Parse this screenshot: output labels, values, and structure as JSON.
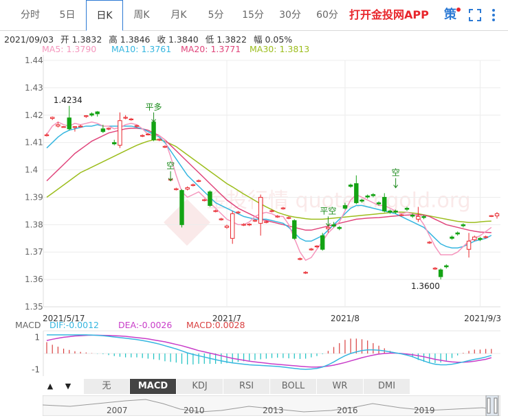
{
  "tabs": [
    "分时",
    "5日",
    "日K",
    "周K",
    "月K",
    "5分",
    "15分",
    "30分",
    "60分"
  ],
  "active_tab": "日K",
  "app_link": "打开金投网APP",
  "ce_label": "策",
  "icons": {
    "fullscreen": "fullscreen-icon",
    "more": "more-vertical-icon"
  },
  "info": {
    "date": "2021/09/03",
    "open_label": "开",
    "open": "1.3832",
    "high_label": "高",
    "high": "1.3846",
    "close_label": "收",
    "close": "1.3840",
    "low_label": "低",
    "low": "1.3822",
    "change_label": "幅",
    "change": "0.05%"
  },
  "ma": [
    {
      "label": "MA5:",
      "value": "1.3790",
      "color": "#f596bd"
    },
    {
      "label": "MA10:",
      "value": "1.3761",
      "color": "#35b6e0"
    },
    {
      "label": "MA20:",
      "value": "1.3771",
      "color": "#e0457b"
    },
    {
      "label": "MA30:",
      "value": "1.3813",
      "color": "#9cbd1c"
    }
  ],
  "macd_info": {
    "title": "MACD",
    "dif_label": "DIF:",
    "dif": "-0.0012",
    "dea_label": "DEA:",
    "dea": "-0.0026",
    "macd_label": "MACD:",
    "macd": "0.0028"
  },
  "indicator_tabs": [
    "无",
    "MACD",
    "KDJ",
    "RSI",
    "BOLL",
    "WR",
    "DMI"
  ],
  "active_indicator": "MACD",
  "nav_years": [
    "2007",
    "2010",
    "2013",
    "2016",
    "2019"
  ],
  "watermark": "金投行情 quote.cngold.org",
  "chart_data": {
    "type": "candlestick",
    "ylim": [
      1.35,
      1.44
    ],
    "yticks": [
      "1.44",
      "1.43",
      "1.42",
      "1.41",
      "1.4",
      "1.39",
      "1.38",
      "1.37",
      "1.36",
      "1.35"
    ],
    "xticks": [
      {
        "label": "2021/5/17",
        "index": 0
      },
      {
        "label": "2021/7",
        "index": 32
      },
      {
        "label": "2021/8",
        "index": 53
      },
      {
        "label": "2021/9/3",
        "index": 77
      }
    ],
    "annotations": [
      {
        "text": "1.4234",
        "index": 4,
        "value": 1.4234,
        "kind": "high"
      },
      {
        "text": "1.3600",
        "index": 69,
        "value": 1.36,
        "kind": "low"
      },
      {
        "text": "平多",
        "index": 19,
        "value": 1.4175,
        "kind": "signal"
      },
      {
        "text": "空",
        "index": 22,
        "value": 1.396,
        "kind": "signal"
      },
      {
        "text": "平空",
        "index": 50,
        "value": 1.3795,
        "kind": "signal"
      },
      {
        "text": "空",
        "index": 62,
        "value": 1.3935,
        "kind": "signal"
      }
    ],
    "candles": [
      [
        1.4125,
        1.4135,
        1.4128,
        1.4122
      ],
      [
        1.4188,
        1.4195,
        1.4192,
        1.4182
      ],
      [
        1.416,
        1.4175,
        1.4165,
        1.4155
      ],
      [
        1.4158,
        1.416,
        1.4158,
        1.4156
      ],
      [
        1.419,
        1.4234,
        1.415,
        1.4145
      ],
      [
        1.4155,
        1.416,
        1.4158,
        1.414
      ],
      [
        1.416,
        1.4165,
        1.416,
        1.4155
      ],
      [
        1.4195,
        1.42,
        1.4198,
        1.419
      ],
      [
        1.4205,
        1.421,
        1.42,
        1.4195
      ],
      [
        1.4212,
        1.4215,
        1.4205,
        1.4195
      ],
      [
        1.415,
        1.4165,
        1.414,
        1.4135
      ],
      [
        1.415,
        1.4155,
        1.4152,
        1.4145
      ],
      [
        1.41,
        1.411,
        1.4095,
        1.409
      ],
      [
        1.409,
        1.421,
        1.418,
        1.408
      ],
      [
        1.419,
        1.42,
        1.4192,
        1.4185
      ],
      [
        1.4185,
        1.419,
        1.4186,
        1.418
      ],
      [
        1.416,
        1.4165,
        1.4162,
        1.4155
      ],
      [
        1.4125,
        1.413,
        1.4126,
        1.412
      ],
      [
        1.413,
        1.4135,
        1.4131,
        1.4126
      ],
      [
        1.4175,
        1.4185,
        1.411,
        1.4105
      ],
      [
        1.411,
        1.4115,
        1.4112,
        1.4105
      ],
      [
        1.4085,
        1.409,
        1.4086,
        1.408
      ],
      [
        1.3965,
        1.397,
        1.3966,
        1.396
      ],
      [
        1.393,
        1.3935,
        1.3931,
        1.3925
      ],
      [
        1.3925,
        1.393,
        1.38,
        1.379
      ],
      [
        1.393,
        1.394,
        1.3935,
        1.3925
      ],
      [
        1.3945,
        1.395,
        1.3946,
        1.394
      ],
      [
        1.396,
        1.3965,
        1.3961,
        1.3955
      ],
      [
        1.389,
        1.3895,
        1.3891,
        1.3885
      ],
      [
        1.392,
        1.3925,
        1.387,
        1.3865
      ],
      [
        1.385,
        1.3855,
        1.3851,
        1.3845
      ],
      [
        1.382,
        1.3825,
        1.3821,
        1.3815
      ],
      [
        1.379,
        1.38,
        1.3795,
        1.3785
      ],
      [
        1.375,
        1.385,
        1.384,
        1.373
      ],
      [
        1.3845,
        1.385,
        1.3846,
        1.384
      ],
      [
        1.38,
        1.3805,
        1.3801,
        1.3795
      ],
      [
        1.38,
        1.3805,
        1.3802,
        1.3795
      ],
      [
        1.3815,
        1.382,
        1.3816,
        1.381
      ],
      [
        1.3805,
        1.391,
        1.39,
        1.376
      ],
      [
        1.381,
        1.3815,
        1.3811,
        1.3805
      ],
      [
        1.385,
        1.3855,
        1.3851,
        1.3845
      ],
      [
        1.383,
        1.3835,
        1.3831,
        1.3825
      ],
      [
        1.386,
        1.3865,
        1.3861,
        1.3855
      ],
      [
        1.3825,
        1.383,
        1.3826,
        1.382
      ],
      [
        1.3815,
        1.382,
        1.375,
        1.3745
      ],
      [
        1.3675,
        1.368,
        1.3676,
        1.367
      ],
      [
        1.3625,
        1.363,
        1.3626,
        1.362
      ],
      [
        1.371,
        1.3715,
        1.3711,
        1.3705
      ],
      [
        1.372,
        1.3725,
        1.3722,
        1.3715
      ],
      [
        1.376,
        1.377,
        1.371,
        1.3705
      ],
      [
        1.3785,
        1.38,
        1.379,
        1.377
      ],
      [
        1.38,
        1.381,
        1.3795,
        1.379
      ],
      [
        1.379,
        1.3795,
        1.3786,
        1.378
      ],
      [
        1.387,
        1.388,
        1.386,
        1.3855
      ],
      [
        1.3945,
        1.395,
        1.394,
        1.3935
      ],
      [
        1.395,
        1.398,
        1.388,
        1.3875
      ],
      [
        1.389,
        1.3895,
        1.3886,
        1.388
      ],
      [
        1.3905,
        1.391,
        1.3901,
        1.3895
      ],
      [
        1.391,
        1.3915,
        1.3906,
        1.39
      ],
      [
        1.388,
        1.3885,
        1.3876,
        1.387
      ],
      [
        1.39,
        1.3915,
        1.385,
        1.3845
      ],
      [
        1.385,
        1.3855,
        1.3846,
        1.384
      ],
      [
        1.385,
        1.3855,
        1.3846,
        1.384
      ],
      [
        1.3835,
        1.384,
        1.3836,
        1.383
      ],
      [
        1.386,
        1.3865,
        1.3856,
        1.385
      ],
      [
        1.3835,
        1.384,
        1.3831,
        1.3825
      ],
      [
        1.382,
        1.3865,
        1.383,
        1.381
      ],
      [
        1.383,
        1.3835,
        1.3826,
        1.382
      ],
      [
        1.3735,
        1.374,
        1.3736,
        1.373
      ],
      [
        1.364,
        1.3645,
        1.3641,
        1.3635
      ],
      [
        1.3635,
        1.364,
        1.361,
        1.36
      ],
      [
        1.365,
        1.3655,
        1.3646,
        1.364
      ],
      [
        1.3755,
        1.376,
        1.375,
        1.3745
      ],
      [
        1.377,
        1.3775,
        1.3766,
        1.376
      ],
      [
        1.38,
        1.3805,
        1.3796,
        1.379
      ],
      [
        1.371,
        1.377,
        1.374,
        1.368
      ],
      [
        1.3745,
        1.376,
        1.3755,
        1.374
      ],
      [
        1.375,
        1.3755,
        1.3746,
        1.374
      ],
      [
        1.3755,
        1.376,
        1.3756,
        1.375
      ],
      [
        1.3832,
        1.3835,
        1.3833,
        1.3828
      ],
      [
        1.3832,
        1.3846,
        1.384,
        1.3822
      ]
    ],
    "ma5": [
      1.413,
      1.416,
      1.4175,
      1.4165,
      1.416,
      1.417,
      1.4165,
      1.417,
      1.4175,
      1.417,
      1.416,
      1.416,
      1.415,
      1.4155,
      1.4165,
      1.417,
      1.4165,
      1.415,
      1.413,
      1.4125,
      1.4125,
      1.411,
      1.405,
      1.398,
      1.392,
      1.39,
      1.391,
      1.392,
      1.39,
      1.388,
      1.386,
      1.384,
      1.382,
      1.381,
      1.38,
      1.38,
      1.381,
      1.383,
      1.384,
      1.3845,
      1.384,
      1.383,
      1.383,
      1.38,
      1.375,
      1.37,
      1.367,
      1.368,
      1.371,
      1.374,
      1.377,
      1.379,
      1.381,
      1.385,
      1.389,
      1.391,
      1.39,
      1.389,
      1.388,
      1.387,
      1.387,
      1.386,
      1.385,
      1.384,
      1.3845,
      1.384,
      1.383,
      1.38,
      1.376,
      1.372,
      1.369,
      1.369,
      1.369,
      1.37,
      1.372,
      1.374,
      1.375,
      1.376,
      1.3775,
      1.379
    ],
    "ma10": [
      1.408,
      1.41,
      1.412,
      1.4135,
      1.4145,
      1.415,
      1.4155,
      1.416,
      1.416,
      1.4165,
      1.416,
      1.416,
      1.416,
      1.416,
      1.416,
      1.416,
      1.4155,
      1.415,
      1.414,
      1.413,
      1.412,
      1.41,
      1.407,
      1.404,
      1.401,
      1.398,
      1.396,
      1.394,
      1.392,
      1.39,
      1.388,
      1.387,
      1.386,
      1.385,
      1.384,
      1.383,
      1.3825,
      1.382,
      1.382,
      1.382,
      1.3815,
      1.381,
      1.3805,
      1.379,
      1.377,
      1.375,
      1.374,
      1.374,
      1.375,
      1.376,
      1.378,
      1.38,
      1.382,
      1.384,
      1.386,
      1.387,
      1.387,
      1.3865,
      1.386,
      1.3855,
      1.385,
      1.3845,
      1.384,
      1.383,
      1.382,
      1.381,
      1.38,
      1.379,
      1.377,
      1.375,
      1.373,
      1.372,
      1.3715,
      1.3715,
      1.372,
      1.373,
      1.374,
      1.3745,
      1.375,
      1.3761
    ],
    "ma20": [
      1.396,
      1.398,
      1.4,
      1.402,
      1.404,
      1.406,
      1.4075,
      1.409,
      1.4105,
      1.4115,
      1.4125,
      1.4135,
      1.414,
      1.4145,
      1.415,
      1.4152,
      1.4152,
      1.415,
      1.4145,
      1.4135,
      1.4125,
      1.411,
      1.409,
      1.407,
      1.405,
      1.403,
      1.401,
      1.399,
      1.397,
      1.395,
      1.393,
      1.391,
      1.389,
      1.3875,
      1.386,
      1.385,
      1.384,
      1.383,
      1.382,
      1.3815,
      1.381,
      1.3805,
      1.38,
      1.3795,
      1.379,
      1.3785,
      1.378,
      1.378,
      1.3785,
      1.379,
      1.3795,
      1.38,
      1.3805,
      1.381,
      1.3815,
      1.382,
      1.3822,
      1.3824,
      1.3825,
      1.3826,
      1.3828,
      1.383,
      1.3832,
      1.3834,
      1.3835,
      1.3836,
      1.3836,
      1.3835,
      1.383,
      1.382,
      1.381,
      1.38,
      1.3795,
      1.379,
      1.3785,
      1.378,
      1.3776,
      1.3773,
      1.3772,
      1.3771
    ],
    "ma30": [
      1.39,
      1.3915,
      1.393,
      1.3945,
      1.396,
      1.3975,
      1.399,
      1.4,
      1.401,
      1.402,
      1.403,
      1.404,
      1.405,
      1.406,
      1.407,
      1.408,
      1.409,
      1.4098,
      1.4105,
      1.411,
      1.411,
      1.4105,
      1.4095,
      1.4085,
      1.407,
      1.4055,
      1.404,
      1.4025,
      1.401,
      1.3995,
      1.398,
      1.3965,
      1.395,
      1.3938,
      1.3925,
      1.3912,
      1.39,
      1.3888,
      1.3876,
      1.3865,
      1.3855,
      1.3845,
      1.3838,
      1.3832,
      1.3828,
      1.3825,
      1.3822,
      1.382,
      1.382,
      1.382,
      1.3822,
      1.3824,
      1.3826,
      1.3828,
      1.383,
      1.3832,
      1.3834,
      1.3836,
      1.3838,
      1.384,
      1.3842,
      1.3844,
      1.3846,
      1.3846,
      1.3845,
      1.3843,
      1.384,
      1.3836,
      1.3832,
      1.3828,
      1.3824,
      1.382,
      1.3816,
      1.3812,
      1.381,
      1.3808,
      1.3808,
      1.381,
      1.3812,
      1.3813
    ],
    "macd_ylim": [
      -1.4,
      1.4
    ],
    "macd_yticks": [
      "1",
      "-1"
    ],
    "dif": [
      1.15,
      1.15,
      1.15,
      1.15,
      1.15,
      1.15,
      1.15,
      1.15,
      1.14,
      1.12,
      1.1,
      1.06,
      1.02,
      0.98,
      0.94,
      0.9,
      0.86,
      0.8,
      0.74,
      0.66,
      0.58,
      0.48,
      0.38,
      0.28,
      0.16,
      0.04,
      -0.06,
      -0.14,
      -0.22,
      -0.3,
      -0.38,
      -0.46,
      -0.52,
      -0.58,
      -0.62,
      -0.66,
      -0.7,
      -0.72,
      -0.74,
      -0.76,
      -0.78,
      -0.8,
      -0.84,
      -0.88,
      -0.92,
      -0.96,
      -0.98,
      -0.96,
      -0.92,
      -0.84,
      -0.7,
      -0.52,
      -0.32,
      -0.14,
      0.0,
      0.1,
      0.18,
      0.22,
      0.22,
      0.2,
      0.16,
      0.1,
      0.04,
      -0.02,
      -0.1,
      -0.2,
      -0.34,
      -0.46,
      -0.58,
      -0.66,
      -0.7,
      -0.7,
      -0.66,
      -0.6,
      -0.52,
      -0.44,
      -0.36,
      -0.3,
      -0.22,
      -0.12
    ],
    "dea": [
      0.8,
      0.88,
      0.94,
      1.0,
      1.04,
      1.08,
      1.1,
      1.12,
      1.13,
      1.13,
      1.12,
      1.11,
      1.1,
      1.08,
      1.06,
      1.02,
      0.98,
      0.94,
      0.9,
      0.84,
      0.78,
      0.72,
      0.64,
      0.56,
      0.48,
      0.38,
      0.28,
      0.18,
      0.1,
      0.02,
      -0.06,
      -0.14,
      -0.22,
      -0.3,
      -0.36,
      -0.42,
      -0.48,
      -0.52,
      -0.56,
      -0.6,
      -0.64,
      -0.67,
      -0.7,
      -0.73,
      -0.76,
      -0.79,
      -0.82,
      -0.84,
      -0.84,
      -0.82,
      -0.78,
      -0.72,
      -0.64,
      -0.56,
      -0.46,
      -0.36,
      -0.26,
      -0.18,
      -0.1,
      -0.04,
      0.0,
      0.02,
      0.02,
      0.0,
      -0.04,
      -0.08,
      -0.14,
      -0.2,
      -0.28,
      -0.36,
      -0.42,
      -0.48,
      -0.52,
      -0.54,
      -0.54,
      -0.52,
      -0.48,
      -0.42,
      -0.36,
      -0.26
    ]
  }
}
